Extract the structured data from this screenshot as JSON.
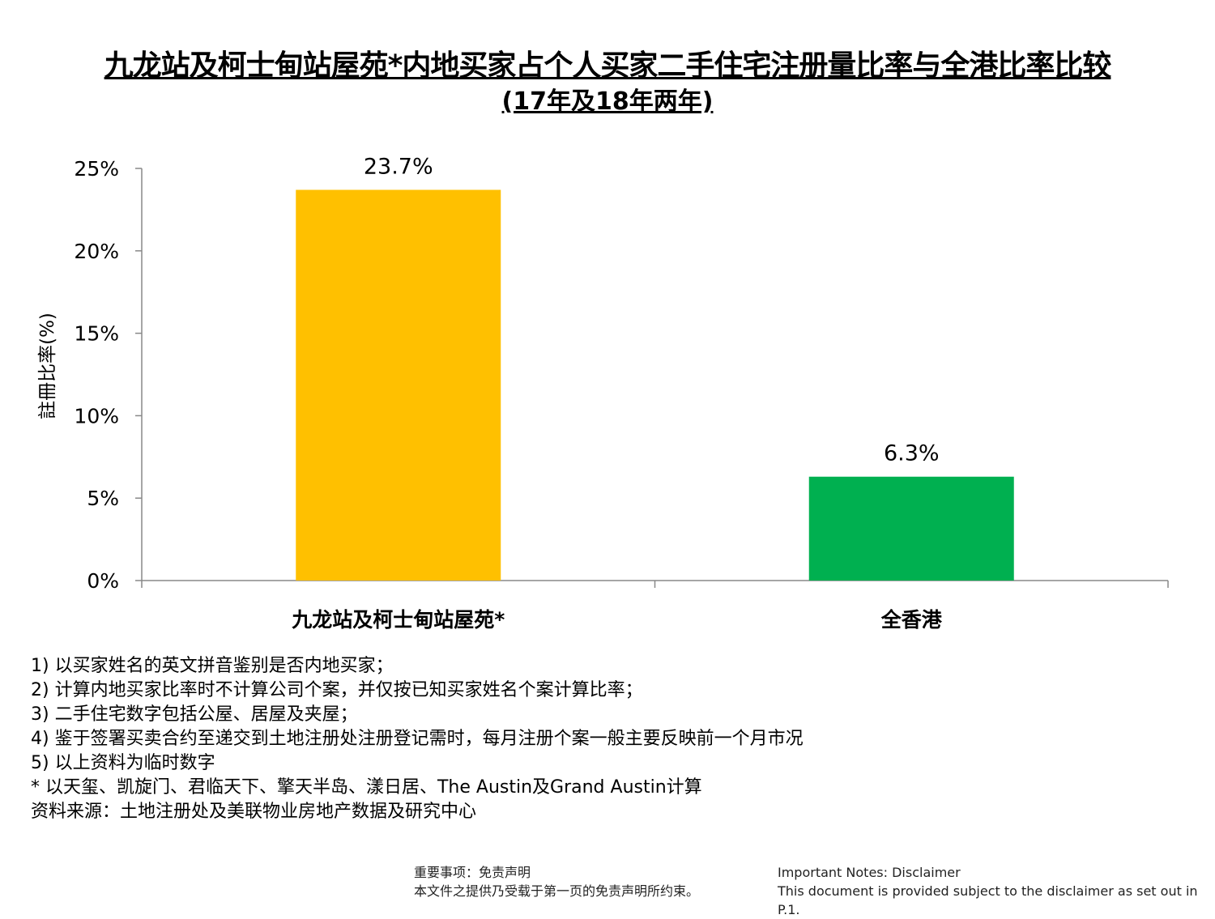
{
  "chart_data": {
    "type": "bar",
    "title": "九龙站及柯士甸站屋苑*内地买家占个人买家二手住宅注册量比率与全港比率比较",
    "subtitle": "(17年及18年两年)",
    "xlabel": "",
    "ylabel": "註冊比率(%)",
    "ylim": [
      0,
      25
    ],
    "yticks": [
      0,
      5,
      10,
      15,
      20,
      25
    ],
    "ytick_labels": [
      "0%",
      "5%",
      "10%",
      "15%",
      "20%",
      "25%"
    ],
    "categories": [
      "九龙站及柯士甸站屋苑*",
      "全香港"
    ],
    "values": [
      23.7,
      6.3
    ],
    "data_labels": [
      "23.7%",
      "6.3%"
    ],
    "colors": [
      "#FFC000",
      "#00B050"
    ],
    "grid": false,
    "legend": "none"
  },
  "notes": [
    "1) 以买家姓名的英文拼音鉴别是否内地买家；",
    "2) 计算内地买家比率时不计算公司个案，并仅按已知买家姓名个案计算比率；",
    "3) 二手住宅数字包括公屋、居屋及夹屋；",
    "4) 鉴于签署买卖合约至递交到土地注册处注册登记需时，每月注册个案一般主要反映前一个月市况",
    "5) 以上资料为临时数字",
    "* 以天玺、凯旋门、君临天下、擎天半岛、漾日居、The Austin及Grand Austin计算",
    "资料来源：土地注册处及美联物业房地产数据及研究中心"
  ],
  "footer": {
    "cn_title": "重要事项：免责声明",
    "cn_text": "本文件之提供乃受载于第一页的免责声明所约束。",
    "en_title": "Important Notes: Disclaimer",
    "en_text": "This document is provided subject to the disclaimer as set out in P.1."
  }
}
